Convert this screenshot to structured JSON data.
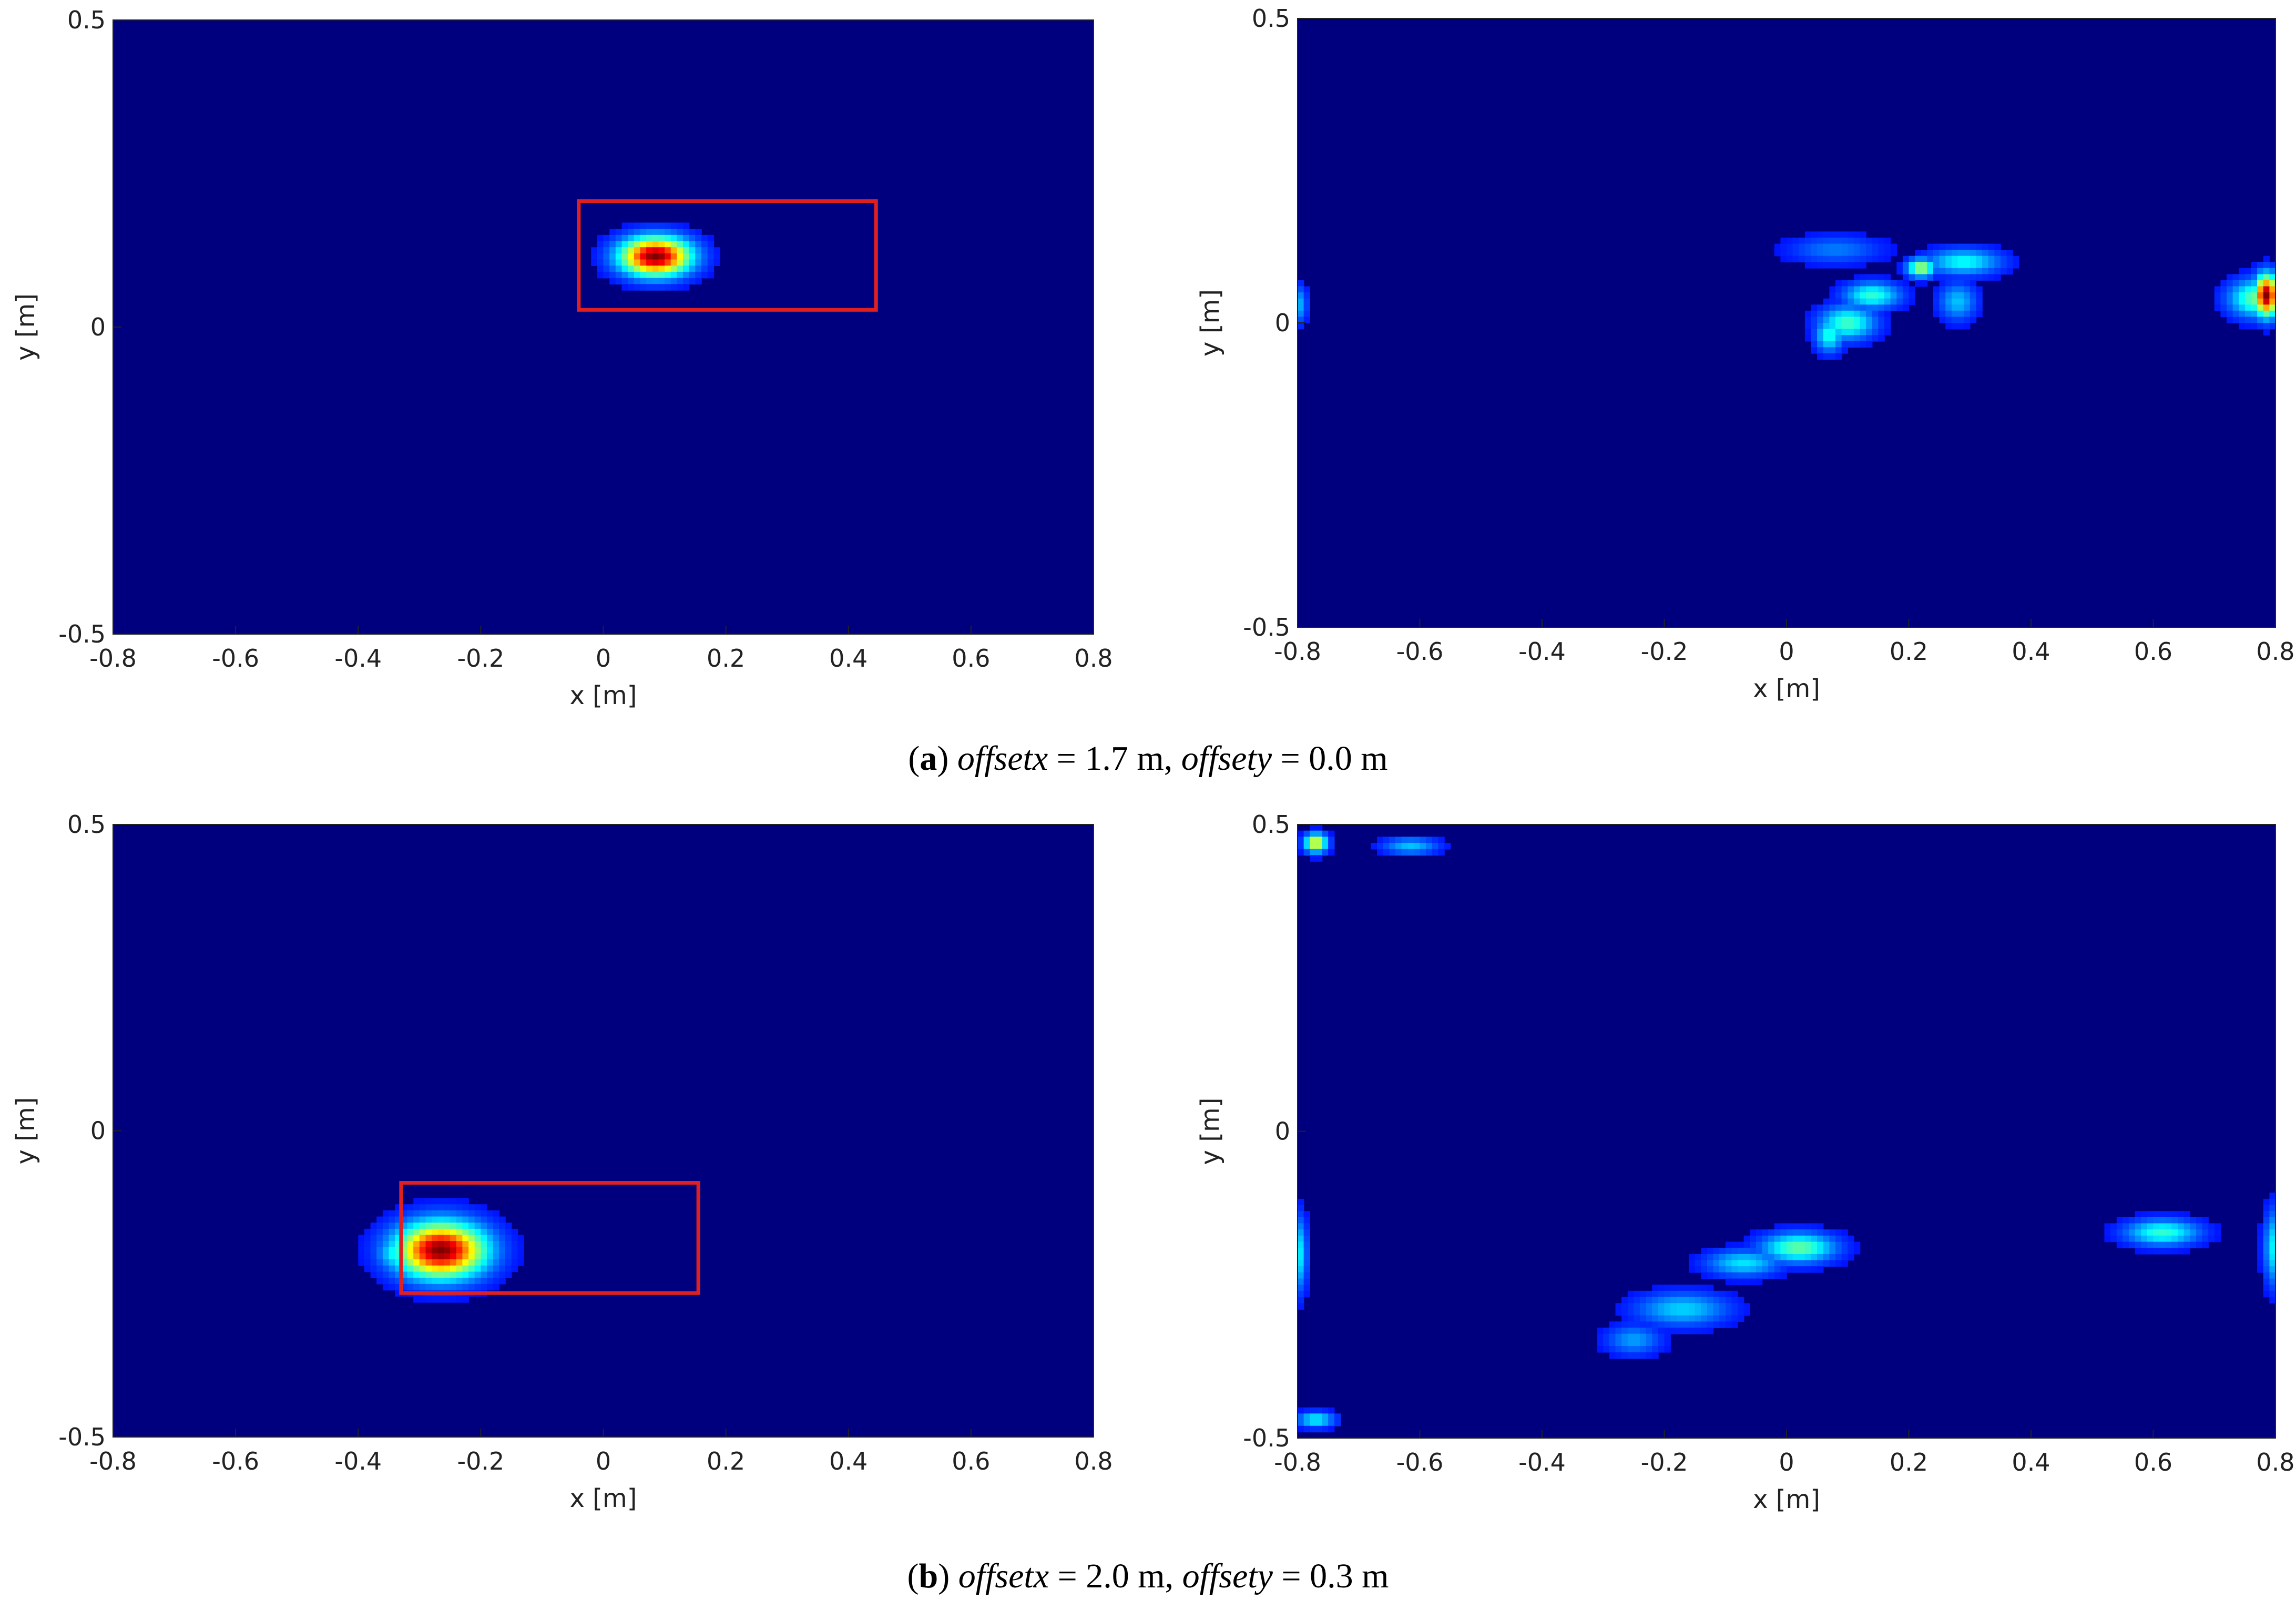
{
  "figure": {
    "rows": [
      {
        "caption": {
          "paren_open": "(",
          "letter": "a",
          "paren_close": ") ",
          "var1": "offsetx",
          "val1": " = 1.7 m, ",
          "var2": "offsety",
          "val2": " = 0.0 m"
        }
      },
      {
        "caption": {
          "paren_open": "(",
          "letter": "b",
          "paren_close": ") ",
          "var1": "offsetx",
          "val1": " = 2.0 m, ",
          "var2": "offsety",
          "val2": " = 0.3 m"
        }
      }
    ]
  },
  "chart_data": [
    {
      "type": "heatmap",
      "panel": "a-left",
      "xlabel": "x [m]",
      "ylabel": "y [m]",
      "xlim": [
        -0.8,
        0.8
      ],
      "ylim": [
        -0.5,
        0.5
      ],
      "xticks": [
        "-0.8",
        "-0.6",
        "-0.4",
        "-0.2",
        "0",
        "0.2",
        "0.4",
        "0.6",
        "0.8"
      ],
      "yticks": [
        "0.5",
        "0",
        "-0.5"
      ],
      "colormap": "jet",
      "background": "#00007f",
      "blobs": [
        {
          "x": 0.085,
          "y": 0.115,
          "sx": 0.038,
          "sy": 0.021,
          "peak": 1.0
        }
      ],
      "box": {
        "x0": -0.04,
        "x1": 0.445,
        "y0": 0.028,
        "y1": 0.205,
        "color": "#e02020"
      }
    },
    {
      "type": "heatmap",
      "panel": "a-right",
      "xlabel": "x [m]",
      "ylabel": "y [m]",
      "xlim": [
        -0.8,
        0.8
      ],
      "ylim": [
        -0.5,
        0.5
      ],
      "xticks": [
        "-0.8",
        "-0.6",
        "-0.4",
        "-0.2",
        "0",
        "0.2",
        "0.4",
        "0.6",
        "0.8"
      ],
      "yticks": [
        "0.5",
        "0",
        "-0.5"
      ],
      "colormap": "jet",
      "background": "#00007f",
      "blobs": [
        {
          "x": 0.785,
          "y": 0.045,
          "sx": 0.013,
          "sy": 0.022,
          "peak": 1.0
        },
        {
          "x": 0.77,
          "y": 0.04,
          "sx": 0.03,
          "sy": 0.02,
          "peak": 0.42
        },
        {
          "x": 0.22,
          "y": 0.09,
          "sx": 0.015,
          "sy": 0.01,
          "peak": 0.5
        },
        {
          "x": 0.29,
          "y": 0.1,
          "sx": 0.04,
          "sy": 0.014,
          "peak": 0.3
        },
        {
          "x": 0.14,
          "y": 0.045,
          "sx": 0.03,
          "sy": 0.014,
          "peak": 0.34
        },
        {
          "x": 0.1,
          "y": 0.0,
          "sx": 0.03,
          "sy": 0.018,
          "peak": 0.36
        },
        {
          "x": 0.07,
          "y": -0.02,
          "sx": 0.015,
          "sy": 0.018,
          "peak": 0.32
        },
        {
          "x": 0.28,
          "y": 0.035,
          "sx": 0.02,
          "sy": 0.02,
          "peak": 0.22
        },
        {
          "x": 0.08,
          "y": 0.12,
          "sx": 0.05,
          "sy": 0.015,
          "peak": 0.14
        },
        {
          "x": -0.8,
          "y": 0.03,
          "sx": 0.01,
          "sy": 0.02,
          "peak": 0.22
        }
      ]
    },
    {
      "type": "heatmap",
      "panel": "b-left",
      "xlabel": "x [m]",
      "ylabel": "y [m]",
      "xlim": [
        -0.8,
        0.8
      ],
      "ylim": [
        -0.5,
        0.5
      ],
      "xticks": [
        "-0.8",
        "-0.6",
        "-0.4",
        "-0.2",
        "0",
        "0.2",
        "0.4",
        "0.6",
        "0.8"
      ],
      "yticks": [
        "0.5",
        "0",
        "-0.5"
      ],
      "colormap": "jet",
      "background": "#00007f",
      "blobs": [
        {
          "x": -0.265,
          "y": -0.195,
          "sx": 0.048,
          "sy": 0.03,
          "peak": 1.0
        },
        {
          "x": -0.33,
          "y": -0.2,
          "sx": 0.025,
          "sy": 0.02,
          "peak": 0.35
        }
      ],
      "box": {
        "x0": -0.33,
        "x1": 0.155,
        "y0": -0.265,
        "y1": -0.085,
        "color": "#e02020"
      }
    },
    {
      "type": "heatmap",
      "panel": "b-right",
      "xlabel": "x [m]",
      "ylabel": "y [m]",
      "xlim": [
        -0.8,
        0.8
      ],
      "ylim": [
        -0.5,
        0.5
      ],
      "xticks": [
        "-0.8",
        "-0.6",
        "-0.4",
        "-0.2",
        "0",
        "0.2",
        "0.4",
        "0.6",
        "0.8"
      ],
      "yticks": [
        "0.5",
        "0",
        "-0.5"
      ],
      "colormap": "jet",
      "background": "#00007f",
      "blobs": [
        {
          "x": -0.77,
          "y": 0.47,
          "sx": 0.012,
          "sy": 0.01,
          "peak": 0.6
        },
        {
          "x": -0.615,
          "y": 0.465,
          "sx": 0.03,
          "sy": 0.009,
          "peak": 0.22
        },
        {
          "x": 0.02,
          "y": -0.19,
          "sx": 0.04,
          "sy": 0.016,
          "peak": 0.4
        },
        {
          "x": -0.07,
          "y": -0.215,
          "sx": 0.04,
          "sy": 0.014,
          "peak": 0.26
        },
        {
          "x": -0.17,
          "y": -0.29,
          "sx": 0.05,
          "sy": 0.018,
          "peak": 0.24
        },
        {
          "x": -0.25,
          "y": -0.34,
          "sx": 0.03,
          "sy": 0.016,
          "peak": 0.18
        },
        {
          "x": 0.615,
          "y": -0.165,
          "sx": 0.04,
          "sy": 0.014,
          "peak": 0.34
        },
        {
          "x": 0.8,
          "y": -0.19,
          "sx": 0.012,
          "sy": 0.04,
          "peak": 0.3
        },
        {
          "x": -0.8,
          "y": -0.2,
          "sx": 0.01,
          "sy": 0.04,
          "peak": 0.3
        },
        {
          "x": -0.77,
          "y": -0.47,
          "sx": 0.02,
          "sy": 0.008,
          "peak": 0.3
        }
      ]
    }
  ]
}
